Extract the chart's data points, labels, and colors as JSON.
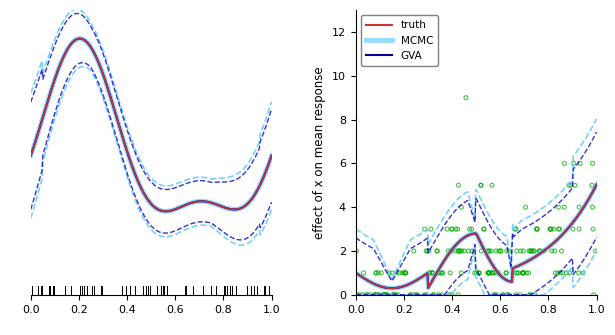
{
  "left_panel": {
    "ylim": [
      -3.5,
      3.5
    ],
    "xlim": [
      0.0,
      1.0
    ],
    "xticks": [
      0.0,
      0.2,
      0.4,
      0.6,
      0.8,
      1.0
    ],
    "truth_color": "#cc3333",
    "mcmc_mean_color": "#66ccff",
    "gva_mean_color": "#000099",
    "ci_color_mcmc": "#66ccff",
    "ci_color_gva": "#0000cc"
  },
  "right_panel": {
    "ylim": [
      0,
      13
    ],
    "xlim": [
      0.0,
      1.0
    ],
    "yticks": [
      0,
      2,
      4,
      6,
      8,
      10,
      12
    ],
    "xticks": [
      0.0,
      0.2,
      0.4,
      0.6,
      0.8,
      1.0
    ],
    "ylabel": "effect of x on mean response",
    "truth_color": "#cc3333",
    "mcmc_mean_color": "#66ccff",
    "gva_mean_color": "#000099",
    "ci_color_mcmc": "#66ccff",
    "ci_color_gva": "#0000cc",
    "scatter_color": "#00aa00",
    "legend_labels": [
      "truth",
      "MCMC",
      "GVA"
    ]
  },
  "figure": {
    "background": "white",
    "figsize": [
      6.15,
      3.35
    ],
    "dpi": 100
  }
}
